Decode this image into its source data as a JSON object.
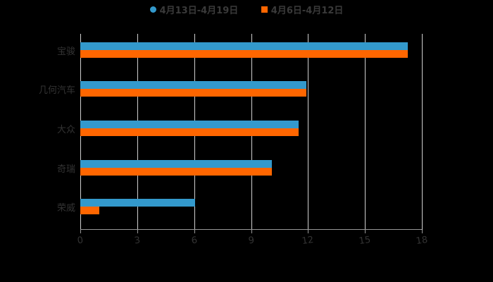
{
  "legend": [
    {
      "label": "4月13日-4月19日",
      "color": "#3399cc",
      "marker": "circle"
    },
    {
      "label": "4月6日-4月12日",
      "color": "#ff6600",
      "marker": "square"
    }
  ],
  "axis": {
    "ticks": [
      "0",
      "3",
      "6",
      "9",
      "12",
      "15",
      "18"
    ]
  },
  "categories": [
    "宝骏",
    "几何汽车",
    "大众",
    "奇瑞",
    "荣威"
  ],
  "chart_data": {
    "type": "bar",
    "orientation": "horizontal",
    "title": "",
    "categories": [
      "宝骏",
      "几何汽车",
      "大众",
      "奇瑞",
      "荣威"
    ],
    "series": [
      {
        "name": "4月13日-4月19日",
        "color": "#3399cc",
        "values": [
          17.25,
          11.9,
          11.5,
          10.1,
          6.05
        ]
      },
      {
        "name": "4月6日-4月12日",
        "color": "#ff6600",
        "values": [
          17.25,
          11.9,
          11.5,
          10.1,
          1.0
        ]
      }
    ],
    "xlabel": "",
    "ylabel": "",
    "xlim": [
      0,
      18
    ],
    "xticks": [
      0,
      3,
      6,
      9,
      12,
      15,
      18
    ],
    "grid": "vertical",
    "legend_position": "top"
  }
}
